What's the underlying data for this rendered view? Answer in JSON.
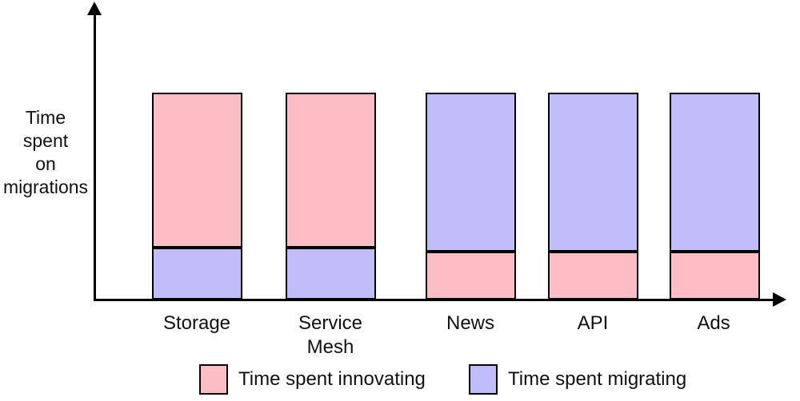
{
  "chart_data": {
    "type": "bar",
    "stacked": true,
    "title": "",
    "xlabel": "",
    "ylabel": "Time spent on migrations",
    "categories": [
      "Storage",
      "Service Mesh",
      "News",
      "API",
      "Ads"
    ],
    "series": [
      {
        "name": "Time spent innovating",
        "color": "#fdbdc4",
        "values": [
          0.75,
          0.75,
          0.23,
          0.23,
          0.23
        ]
      },
      {
        "name": "Time spent migrating",
        "color": "#c1bdfa",
        "values": [
          0.25,
          0.25,
          0.77,
          0.77,
          0.77
        ]
      }
    ],
    "bars": [
      {
        "category": "Storage",
        "segments_bottom_to_top": [
          {
            "series": "Time spent migrating",
            "value": 0.25
          },
          {
            "series": "Time spent innovating",
            "value": 0.75
          }
        ]
      },
      {
        "category": "Service Mesh",
        "segments_bottom_to_top": [
          {
            "series": "Time spent migrating",
            "value": 0.25
          },
          {
            "series": "Time spent innovating",
            "value": 0.75
          }
        ]
      },
      {
        "category": "News",
        "segments_bottom_to_top": [
          {
            "series": "Time spent innovating",
            "value": 0.23
          },
          {
            "series": "Time spent migrating",
            "value": 0.77
          }
        ]
      },
      {
        "category": "API",
        "segments_bottom_to_top": [
          {
            "series": "Time spent innovating",
            "value": 0.23
          },
          {
            "series": "Time spent migrating",
            "value": 0.77
          }
        ]
      },
      {
        "category": "Ads",
        "segments_bottom_to_top": [
          {
            "series": "Time spent innovating",
            "value": 0.23
          },
          {
            "series": "Time spent migrating",
            "value": 0.77
          }
        ]
      }
    ],
    "ylim": [
      0,
      1
    ],
    "axis_ticks": "none",
    "grid": false,
    "legend_position": "bottom"
  },
  "legend": {
    "items": [
      {
        "label": "Time spent innovating",
        "color": "#fdbdc4"
      },
      {
        "label": "Time spent migrating",
        "color": "#c1bdfa"
      }
    ]
  },
  "colors": {
    "innovating_pink": "#fdbdc4",
    "migrating_purple": "#c1bdfa",
    "axis": "#000000",
    "text": "#111111",
    "background": "#ffffff"
  }
}
